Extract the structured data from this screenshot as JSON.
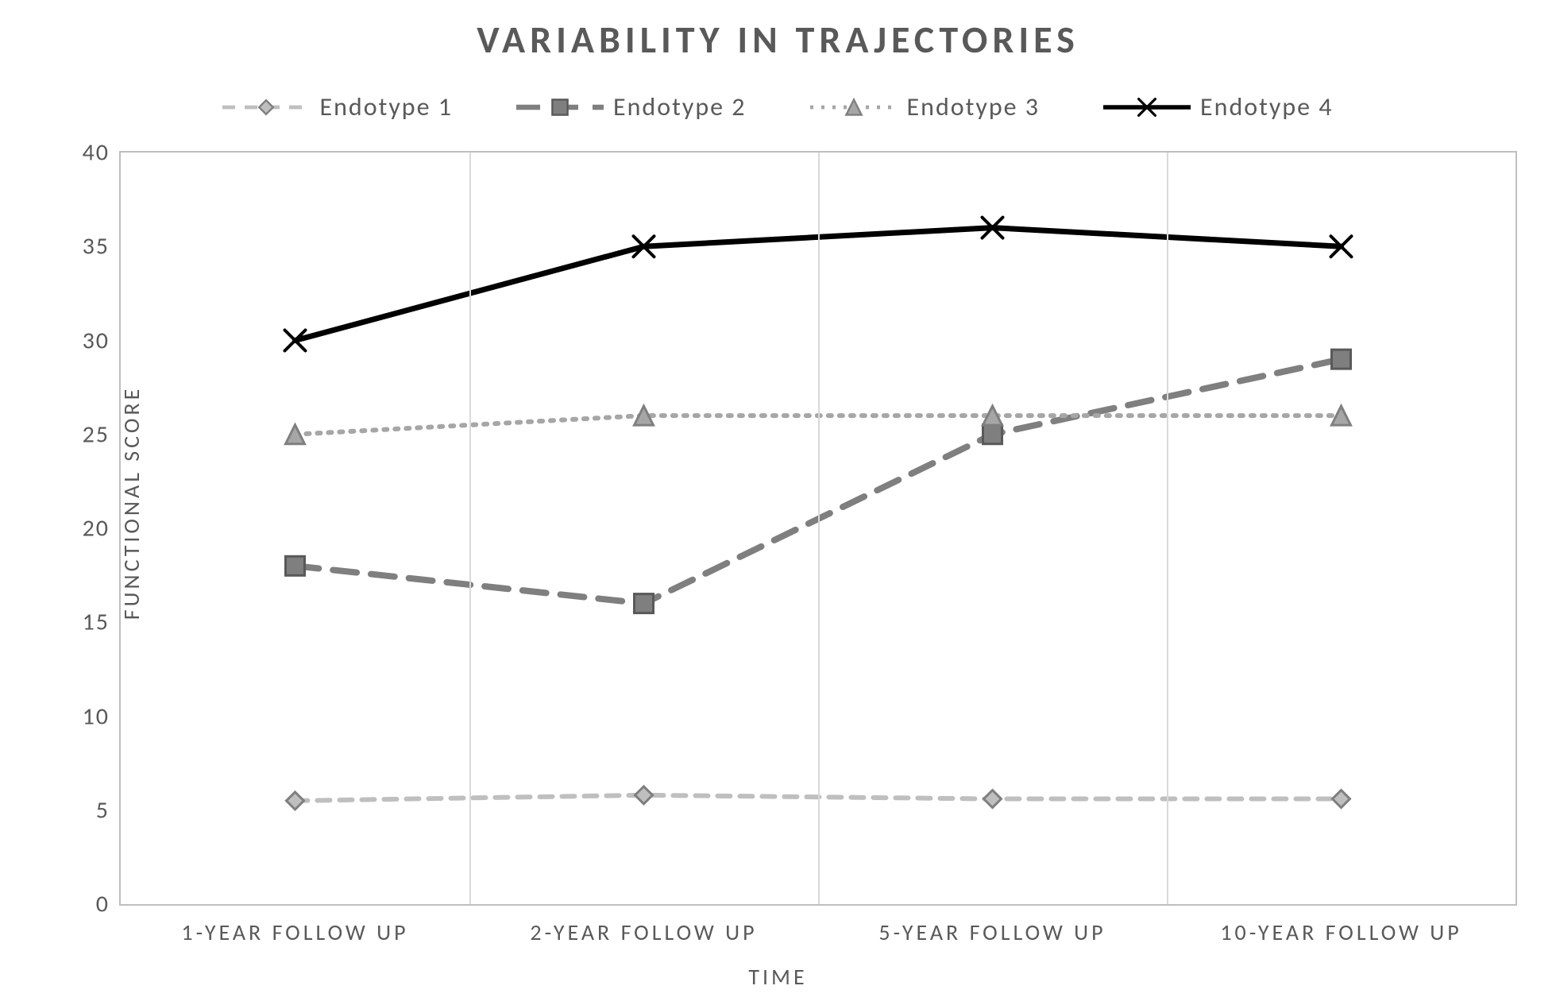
{
  "chart": {
    "type": "line",
    "title": "VARIABILITY IN TRAJECTORIES",
    "title_fontsize": 48,
    "title_color": "#595959",
    "title_letter_spacing": 6,
    "background_color": "#ffffff",
    "plot_border_color": "#bfbfbf",
    "grid_color": "#d9d9d9",
    "x_axis": {
      "label": "TIME",
      "label_fontsize": 28,
      "label_color": "#595959",
      "label_letter_spacing": 4,
      "categories": [
        "1-YEAR FOLLOW UP",
        "2-YEAR FOLLOW UP",
        "5-YEAR FOLLOW UP",
        "10-YEAR FOLLOW UP"
      ],
      "tick_fontsize": 28,
      "tick_color": "#595959",
      "tick_letter_spacing": 4
    },
    "y_axis": {
      "label": "FUNCTIONAL SCORE",
      "label_fontsize": 28,
      "label_color": "#595959",
      "label_letter_spacing": 4,
      "min": 0,
      "max": 40,
      "tick_step": 5,
      "ticks": [
        0,
        5,
        10,
        15,
        20,
        25,
        30,
        35,
        40
      ],
      "tick_fontsize": 30,
      "tick_color": "#595959",
      "tick_letter_spacing": 2
    },
    "legend": {
      "fontsize": 32,
      "color": "#595959",
      "letter_spacing": 2,
      "position": "top"
    },
    "series": [
      {
        "name": "Endotype 1",
        "values": [
          5.5,
          5.8,
          5.6,
          5.6
        ],
        "line_color": "#bfbfbf",
        "line_width": 6,
        "dash": "16 12",
        "marker": "diamond",
        "marker_size": 22,
        "marker_fill": "#bfbfbf",
        "marker_stroke": "#7f7f7f",
        "marker_stroke_width": 3
      },
      {
        "name": "Endotype 2",
        "values": [
          18,
          16,
          25,
          29
        ],
        "line_color": "#7f7f7f",
        "line_width": 8,
        "dash": "30 18",
        "marker": "square",
        "marker_size": 24,
        "marker_fill": "#7f7f7f",
        "marker_stroke": "#595959",
        "marker_stroke_width": 3
      },
      {
        "name": "Endotype 3",
        "values": [
          25,
          26,
          26,
          26
        ],
        "line_color": "#a6a6a6",
        "line_width": 6,
        "dash": "4 10",
        "marker": "triangle",
        "marker_size": 24,
        "marker_fill": "#a6a6a6",
        "marker_stroke": "#7f7f7f",
        "marker_stroke_width": 3
      },
      {
        "name": "Endotype 4",
        "values": [
          30,
          35,
          36,
          35
        ],
        "line_color": "#000000",
        "line_width": 7,
        "dash": "none",
        "marker": "x",
        "marker_size": 26,
        "marker_fill": "none",
        "marker_stroke": "#000000",
        "marker_stroke_width": 4
      }
    ]
  }
}
